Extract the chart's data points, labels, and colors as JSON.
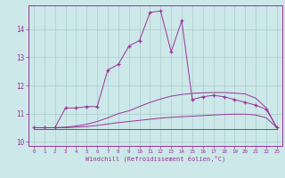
{
  "xlabel": "Windchill (Refroidissement éolien,°C)",
  "background_color": "#cce8e8",
  "grid_color": "#aacccc",
  "line_color": "#993399",
  "ylim": [
    9.85,
    14.85
  ],
  "yticks": [
    10,
    11,
    12,
    13,
    14
  ],
  "xticks": [
    0,
    1,
    2,
    3,
    4,
    5,
    6,
    7,
    8,
    9,
    10,
    11,
    12,
    13,
    14,
    15,
    16,
    17,
    18,
    19,
    20,
    21,
    22,
    23
  ],
  "line1_x": [
    0,
    1,
    2,
    3,
    4,
    5,
    6,
    7,
    8,
    9,
    10,
    11,
    12,
    13,
    14,
    15,
    16,
    17,
    18,
    19,
    20,
    21,
    22,
    23
  ],
  "line1_y": [
    10.45,
    10.45,
    10.45,
    10.45,
    10.45,
    10.45,
    10.45,
    10.45,
    10.45,
    10.45,
    10.45,
    10.45,
    10.45,
    10.45,
    10.45,
    10.45,
    10.45,
    10.45,
    10.45,
    10.45,
    10.45,
    10.45,
    10.45,
    10.45
  ],
  "line2_x": [
    0,
    1,
    2,
    3,
    4,
    5,
    6,
    7,
    8,
    9,
    10,
    11,
    12,
    13,
    14,
    15,
    16,
    17,
    18,
    19,
    20,
    21,
    22,
    23
  ],
  "line2_y": [
    10.5,
    10.5,
    10.5,
    10.5,
    10.52,
    10.54,
    10.58,
    10.63,
    10.68,
    10.72,
    10.76,
    10.8,
    10.84,
    10.87,
    10.89,
    10.91,
    10.93,
    10.95,
    10.97,
    10.98,
    10.98,
    10.95,
    10.85,
    10.5
  ],
  "line3_x": [
    0,
    1,
    2,
    3,
    4,
    5,
    6,
    7,
    8,
    9,
    10,
    11,
    12,
    13,
    14,
    15,
    16,
    17,
    18,
    19,
    20,
    21,
    22,
    23
  ],
  "line3_y": [
    10.5,
    10.5,
    10.5,
    10.52,
    10.56,
    10.62,
    10.72,
    10.85,
    11.0,
    11.1,
    11.25,
    11.4,
    11.52,
    11.62,
    11.68,
    11.72,
    11.74,
    11.75,
    11.75,
    11.73,
    11.7,
    11.55,
    11.2,
    10.5
  ],
  "line4_x": [
    0,
    1,
    2,
    3,
    4,
    5,
    6,
    7,
    8,
    9,
    10,
    11,
    12,
    13,
    14,
    15,
    16,
    17,
    18,
    19,
    20,
    21,
    22,
    23
  ],
  "line4_y": [
    10.5,
    10.5,
    10.5,
    11.2,
    11.2,
    11.25,
    11.25,
    12.55,
    12.75,
    13.4,
    13.6,
    14.6,
    14.65,
    13.2,
    14.3,
    11.5,
    11.6,
    11.65,
    11.6,
    11.5,
    11.4,
    11.3,
    11.15,
    10.5
  ]
}
